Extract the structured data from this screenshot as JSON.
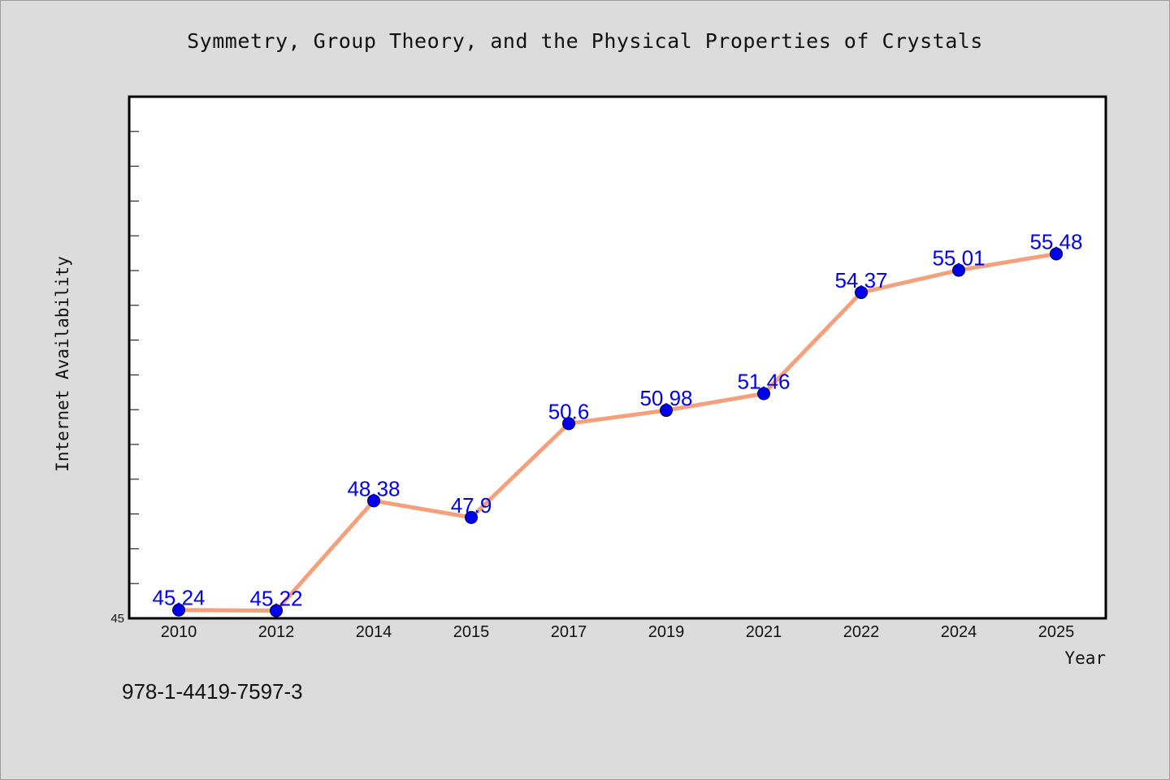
{
  "page": {
    "title": "Symmetry, Group Theory, and the Physical Properties of Crystals",
    "footer_text": "978-1-4419-7597-3"
  },
  "chart_data": {
    "type": "line",
    "title": "Symmetry, Group Theory, and the Physical Properties of Crystals",
    "xlabel": "Year",
    "ylabel": "Internet Availability",
    "categories": [
      "2010",
      "2012",
      "2014",
      "2015",
      "2017",
      "2019",
      "2021",
      "2022",
      "2024",
      "2025"
    ],
    "values": [
      45.24,
      45.22,
      48.38,
      47.9,
      50.6,
      50.98,
      51.46,
      54.37,
      55.01,
      55.48
    ],
    "data_labels": [
      "45.24",
      "45.22",
      "48.38",
      "47.9",
      "50.6",
      "50.98",
      "51.46",
      "54.37",
      "55.01",
      "55.48"
    ],
    "ylim": [
      45,
      60
    ],
    "y_tick_labels": [
      "45"
    ],
    "y_minor_tick_step": 1,
    "grid": false,
    "line_color": "#f4a07c",
    "marker_color": "#0000ee",
    "label_color": "#0000ee",
    "plot_background": "#ffffff",
    "page_background": "#dcdcdc"
  }
}
